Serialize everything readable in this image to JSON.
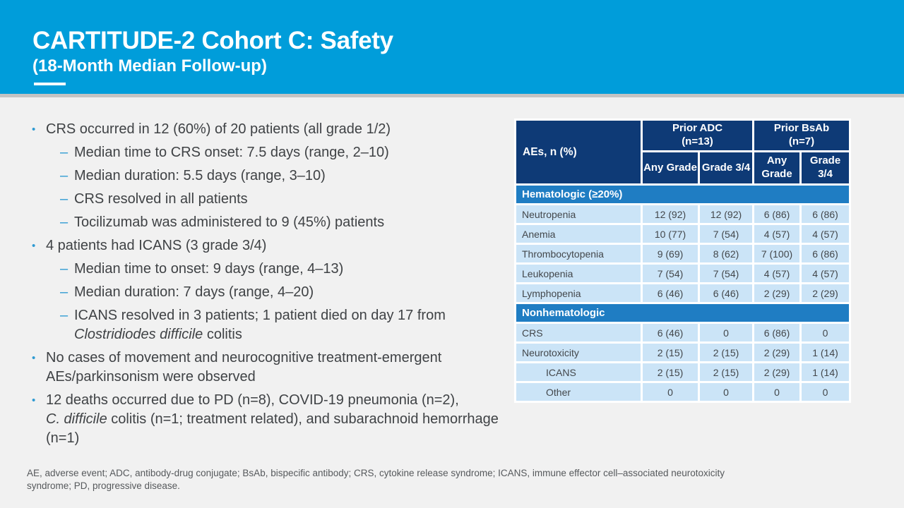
{
  "slide": {
    "title": "CARTITUDE-2 Cohort C: Safety",
    "subtitle": "(18-Month Median Follow-up)"
  },
  "colors": {
    "header_blue": "#009dda",
    "table_header_navy": "#0e3a76",
    "table_section_blue": "#1f7dc3",
    "table_cell_blue": "#cbe4f7",
    "bullet_marker_blue": "#2e9ad2",
    "body_text_gray": "#3f4245",
    "page_background": "#f1f1f1"
  },
  "bullets": [
    {
      "level": 1,
      "segments": [
        {
          "text": "CRS occurred in 12 (60%) of 20 patients (all grade 1/2)",
          "italic": false
        }
      ]
    },
    {
      "level": 2,
      "segments": [
        {
          "text": "Median time to CRS onset: 7.5 days (range, 2–10)",
          "italic": false
        }
      ]
    },
    {
      "level": 2,
      "segments": [
        {
          "text": "Median duration: 5.5 days (range, 3–10)",
          "italic": false
        }
      ]
    },
    {
      "level": 2,
      "segments": [
        {
          "text": "CRS resolved in all patients",
          "italic": false
        }
      ]
    },
    {
      "level": 2,
      "segments": [
        {
          "text": "Tocilizumab was administered to 9 (45%) patients",
          "italic": false
        }
      ]
    },
    {
      "level": 1,
      "segments": [
        {
          "text": "4 patients had ICANS (3 grade 3/4)",
          "italic": false
        }
      ]
    },
    {
      "level": 2,
      "segments": [
        {
          "text": "Median time to onset: 9 days (range, 4–13)",
          "italic": false
        }
      ]
    },
    {
      "level": 2,
      "segments": [
        {
          "text": "Median duration: 7 days (range, 4–20)",
          "italic": false
        }
      ]
    },
    {
      "level": 2,
      "segments": [
        {
          "text": "ICANS resolved in 3 patients; 1 patient died on day 17 from ",
          "italic": false
        },
        {
          "text": "Clostridiodes difficile",
          "italic": true
        },
        {
          "text": " colitis",
          "italic": false
        }
      ]
    },
    {
      "level": 1,
      "segments": [
        {
          "text": "No cases of movement and neurocognitive treatment-emergent AEs/parkinsonism were observed",
          "italic": false
        }
      ]
    },
    {
      "level": 1,
      "segments": [
        {
          "text": "12 deaths occurred due to PD (n=8), COVID-19 pneumonia (n=2), ",
          "italic": false
        },
        {
          "text": "C. difficile",
          "italic": true
        },
        {
          "text": " colitis (n=1; treatment related), and subarachnoid hemorrhage (n=1)",
          "italic": false
        }
      ]
    }
  ],
  "table": {
    "corner_header": "AEs, n (%)",
    "group_headers": [
      {
        "line1": "Prior ADC",
        "line2": "(n=13)"
      },
      {
        "line1": "Prior BsAb",
        "line2": "(n=7)"
      }
    ],
    "col_headers": [
      "Any Grade",
      "Grade 3/4",
      "Any Grade",
      "Grade 3/4"
    ],
    "sections": [
      {
        "label": "Hematologic (≥20%)",
        "rows": [
          {
            "label": "Neutropenia",
            "indent": false,
            "values": [
              "12 (92)",
              "12 (92)",
              "6 (86)",
              "6 (86)"
            ]
          },
          {
            "label": "Anemia",
            "indent": false,
            "values": [
              "10 (77)",
              "7 (54)",
              "4 (57)",
              "4 (57)"
            ]
          },
          {
            "label": "Thrombocytopenia",
            "indent": false,
            "values": [
              "9 (69)",
              "8 (62)",
              "7 (100)",
              "6 (86)"
            ]
          },
          {
            "label": "Leukopenia",
            "indent": false,
            "values": [
              "7 (54)",
              "7 (54)",
              "4 (57)",
              "4 (57)"
            ]
          },
          {
            "label": "Lymphopenia",
            "indent": false,
            "values": [
              "6 (46)",
              "6 (46)",
              "2 (29)",
              "2 (29)"
            ]
          }
        ]
      },
      {
        "label": "Nonhematologic",
        "rows": [
          {
            "label": "CRS",
            "indent": false,
            "values": [
              "6 (46)",
              "0",
              "6 (86)",
              "0"
            ]
          },
          {
            "label": "Neurotoxicity",
            "indent": false,
            "values": [
              "2 (15)",
              "2 (15)",
              "2 (29)",
              "1 (14)"
            ]
          },
          {
            "label": "ICANS",
            "indent": true,
            "values": [
              "2 (15)",
              "2 (15)",
              "2 (29)",
              "1 (14)"
            ]
          },
          {
            "label": "Other",
            "indent": true,
            "values": [
              "0",
              "0",
              "0",
              "0"
            ]
          }
        ]
      }
    ]
  },
  "footnote": "AE, adverse event; ADC, antibody-drug conjugate; BsAb, bispecific antibody; CRS, cytokine release syndrome; ICANS, immune effector cell–associated neurotoxicity syndrome; PD, progressive disease."
}
